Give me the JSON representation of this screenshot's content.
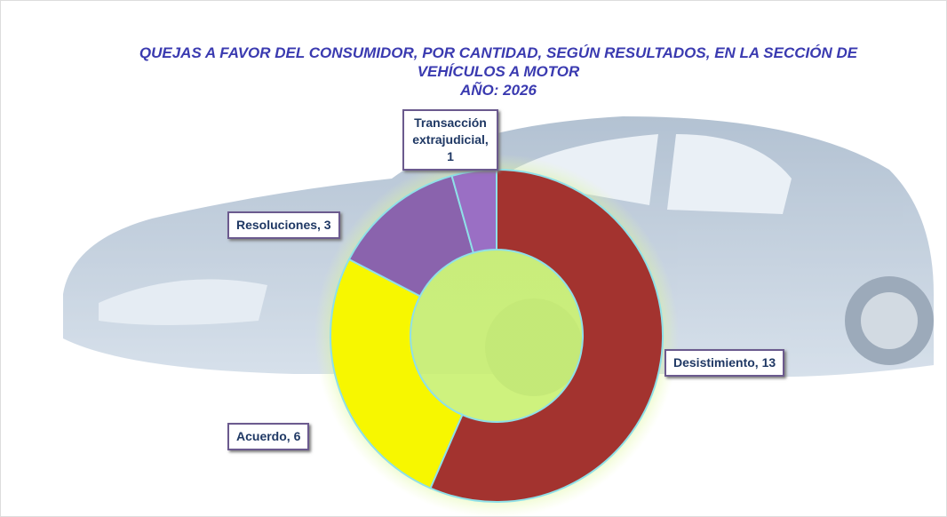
{
  "chart_data": {
    "type": "donut",
    "title": "QUEJAS A FAVOR DEL CONSUMIDOR, POR CANTIDAD, SEGÚN RESULTADOS, EN LA SECCIÓN DE VEHÍCULOS A  MOTOR",
    "subtitle": "AÑO: 2026",
    "values": [
      13,
      6,
      3,
      1
    ],
    "value_labels": [
      "Desistimiento, 13",
      "Acuerdo, 6",
      "Resoluciones, 3",
      "Transacción extrajudicial, 1"
    ],
    "colors": [
      "#a3332f",
      "#f7f700",
      "#8a63ad",
      "#9a6fc4"
    ]
  }
}
